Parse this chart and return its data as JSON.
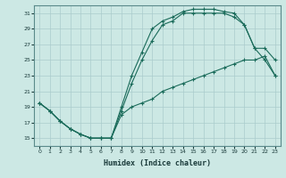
{
  "xlabel": "Humidex (Indice chaleur)",
  "bg_color": "#cce8e4",
  "grid_color": "#aacccc",
  "line_color": "#1a6b5a",
  "xlim": [
    -0.5,
    23.5
  ],
  "ylim": [
    14.0,
    32.0
  ],
  "yticks": [
    15,
    17,
    19,
    21,
    23,
    25,
    27,
    29,
    31
  ],
  "xticks": [
    0,
    1,
    2,
    3,
    4,
    5,
    6,
    7,
    8,
    9,
    10,
    11,
    12,
    13,
    14,
    15,
    16,
    17,
    18,
    19,
    20,
    21,
    22,
    23
  ],
  "line1_x": [
    0,
    1,
    2,
    3,
    4,
    5,
    6,
    7,
    8,
    9,
    10,
    11,
    12,
    13,
    14,
    15,
    16,
    17,
    18,
    19,
    20,
    21,
    22,
    23
  ],
  "line1_y": [
    19.5,
    18.5,
    17.2,
    16.2,
    15.5,
    15.0,
    15.0,
    15.0,
    19.0,
    23.0,
    26.0,
    29.0,
    30.0,
    30.5,
    31.2,
    31.5,
    31.5,
    31.5,
    31.2,
    31.0,
    29.5,
    26.5,
    25.0,
    23.0
  ],
  "line2_x": [
    0,
    1,
    2,
    3,
    4,
    5,
    6,
    7,
    8,
    9,
    10,
    11,
    12,
    13,
    14,
    15,
    16,
    17,
    18,
    19,
    20,
    21,
    22,
    23
  ],
  "line2_y": [
    19.5,
    18.5,
    17.2,
    16.2,
    15.5,
    15.0,
    15.0,
    15.0,
    18.5,
    22.0,
    25.0,
    27.5,
    29.5,
    30.0,
    31.0,
    31.0,
    31.0,
    31.0,
    31.0,
    30.5,
    29.5,
    26.5,
    26.5,
    25.0
  ],
  "line3_x": [
    0,
    1,
    2,
    3,
    4,
    5,
    6,
    7,
    8,
    9,
    10,
    11,
    12,
    13,
    14,
    15,
    16,
    17,
    18,
    19,
    20,
    21,
    22,
    23
  ],
  "line3_y": [
    19.5,
    18.5,
    17.2,
    16.2,
    15.5,
    15.0,
    15.0,
    15.0,
    18.0,
    19.0,
    19.5,
    20.0,
    21.0,
    21.5,
    22.0,
    22.5,
    23.0,
    23.5,
    24.0,
    24.5,
    25.0,
    25.0,
    25.5,
    23.0
  ]
}
